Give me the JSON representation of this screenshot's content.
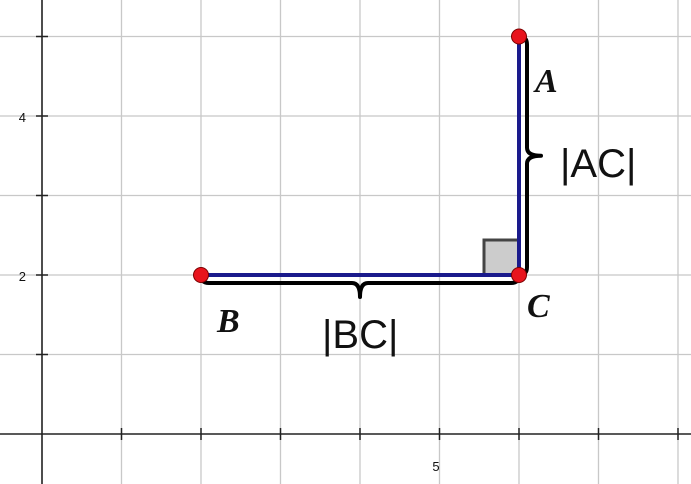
{
  "axes": {
    "x_tick_labels": [
      {
        "value": 5,
        "text": "5"
      }
    ],
    "y_tick_labels": [
      {
        "value": 2,
        "text": "2"
      },
      {
        "value": 4,
        "text": "4"
      }
    ],
    "x_range": [
      0.5,
      8.5
    ],
    "y_range": [
      -0.5,
      5.5
    ],
    "grid": true,
    "grid_step": 1,
    "major_tick_step": 1
  },
  "points": [
    {
      "id": "A",
      "label": "A",
      "x": 6,
      "y": 5
    },
    {
      "id": "B",
      "label": "B",
      "x": 2,
      "y": 2
    },
    {
      "id": "C",
      "label": "C",
      "x": 6,
      "y": 2
    }
  ],
  "segments": [
    {
      "from": "B",
      "to": "C"
    },
    {
      "from": "C",
      "to": "A"
    }
  ],
  "right_angle_at": "C",
  "length_labels": {
    "bc": "|BC|",
    "ac": "|AC|"
  },
  "colors": {
    "grid": "#c8c8c8",
    "axis": "#222222",
    "segment": "#1a1a8c",
    "brace": "#000000",
    "point": "#e8141d",
    "right_angle_fill": "#cccccc",
    "right_angle_stroke": "#444444"
  }
}
